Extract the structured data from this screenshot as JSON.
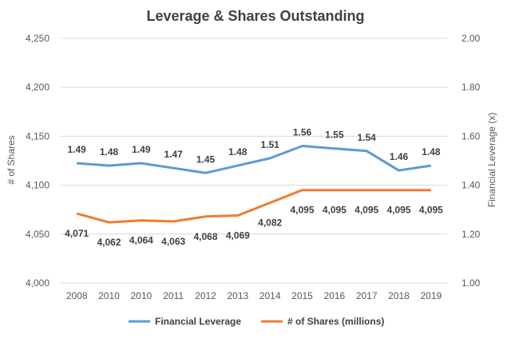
{
  "colors": {
    "leverage": "#5b9bd5",
    "shares": "#ed7d31",
    "grid": "#d9d9d9",
    "text": "#595959"
  },
  "chart_data": {
    "type": "line",
    "title": "Leverage & Shares Outstanding",
    "ylabel_left": "# of Shares",
    "ylabel_right": "Financial Leverage (x)",
    "categories": [
      "2008",
      "2010",
      "2010",
      "2011",
      "2012",
      "2013",
      "2014",
      "2015",
      "2016",
      "2017",
      "2018",
      "2019"
    ],
    "ylim_left": [
      4000,
      4250
    ],
    "yticks_left": [
      "4,000",
      "4,050",
      "4,100",
      "4,150",
      "4,200",
      "4,250"
    ],
    "ylim_right": [
      1.0,
      2.0
    ],
    "yticks_right": [
      "1.00",
      "1.20",
      "1.40",
      "1.60",
      "1.80",
      "2.00"
    ],
    "grid": true,
    "legend_position": "bottom",
    "series": [
      {
        "name": "Financial Leverage",
        "axis": "right",
        "values": [
          1.49,
          1.48,
          1.49,
          1.47,
          1.45,
          1.48,
          1.51,
          1.56,
          1.55,
          1.54,
          1.46,
          1.48
        ],
        "labels": [
          "1.49",
          "1.48",
          "1.49",
          "1.47",
          "1.45",
          "1.48",
          "1.51",
          "1.56",
          "1.55",
          "1.54",
          "1.46",
          "1.48"
        ]
      },
      {
        "name": "# of Shares (millions)",
        "axis": "left",
        "values": [
          4071,
          4062,
          4064,
          4063,
          4068,
          4069,
          4082,
          4095,
          4095,
          4095,
          4095,
          4095
        ],
        "labels": [
          "4,071",
          "4,062",
          "4,064",
          "4,063",
          "4,068",
          "4,069",
          "4,082",
          "4,095",
          "4,095",
          "4,095",
          "4,095",
          "4,095"
        ]
      }
    ]
  }
}
